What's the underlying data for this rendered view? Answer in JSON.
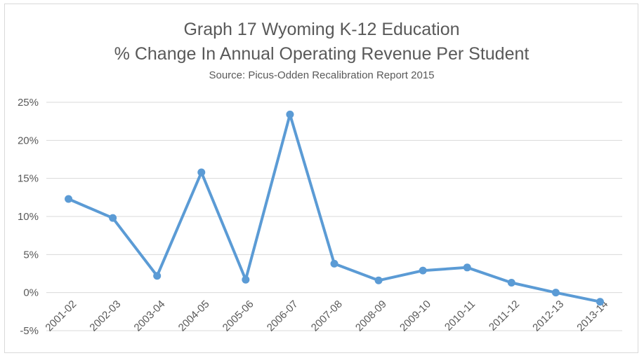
{
  "chart_data": {
    "type": "line",
    "title_lines": [
      "Graph 17 Wyoming K-12 Education",
      "% Change In Annual Operating Revenue Per Student"
    ],
    "subtitle": "Source: Picus-Odden Recalibration Report 2015",
    "categories": [
      "2001-02",
      "2002-03",
      "2003-04",
      "2004-05",
      "2005-06",
      "2006-07",
      "2007-08",
      "2008-09",
      "2009-10",
      "2010-11",
      "2011-12",
      "2012-13",
      "2013-14"
    ],
    "series": [
      {
        "values": [
          12.3,
          9.8,
          2.2,
          15.8,
          1.7,
          23.4,
          3.8,
          1.6,
          2.9,
          3.3,
          1.3,
          0.0,
          -1.2
        ]
      }
    ],
    "ylim": [
      -5,
      25
    ],
    "yticks": [
      -5,
      0,
      5,
      10,
      15,
      20,
      25
    ],
    "ytick_labels": [
      "-5%",
      "0%",
      "5%",
      "10%",
      "15%",
      "20%",
      "25%"
    ],
    "xlabel": "",
    "ylabel": "",
    "grid": true,
    "legend": "none",
    "colors": {
      "series": "#5b9bd5",
      "grid": "#d9d9d9",
      "text": "#595959"
    }
  }
}
